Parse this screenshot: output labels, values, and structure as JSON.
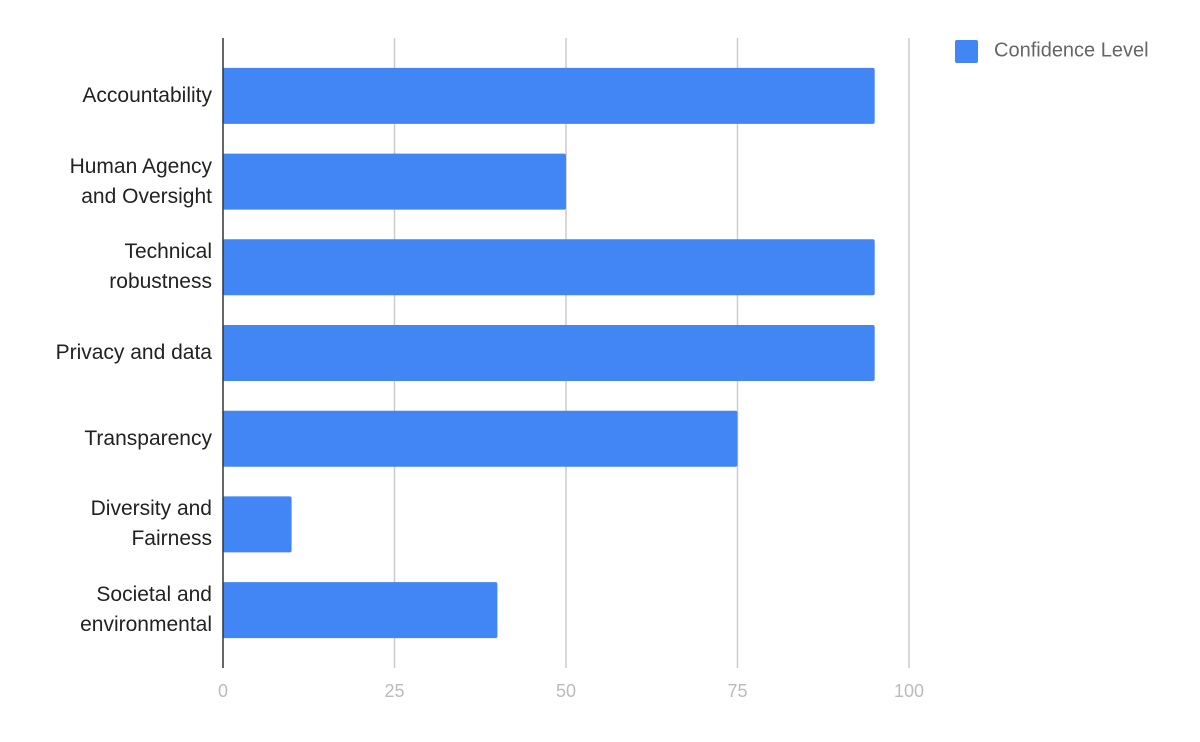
{
  "chart_data": {
    "type": "bar",
    "orientation": "horizontal",
    "categories": [
      "Accountability",
      "Human Agency and Oversight",
      "Technical robustness",
      "Privacy and data",
      "Transparency",
      "Diversity and Fairness",
      "Societal and environmental"
    ],
    "series": [
      {
        "name": "Confidence Level",
        "color": "#4285f4",
        "values": [
          95,
          50,
          95,
          95,
          75,
          10,
          40
        ]
      }
    ],
    "xlim": [
      0,
      100
    ],
    "xticks": [
      0,
      25,
      50,
      75,
      100
    ],
    "grid": true,
    "legend": "top-right"
  }
}
